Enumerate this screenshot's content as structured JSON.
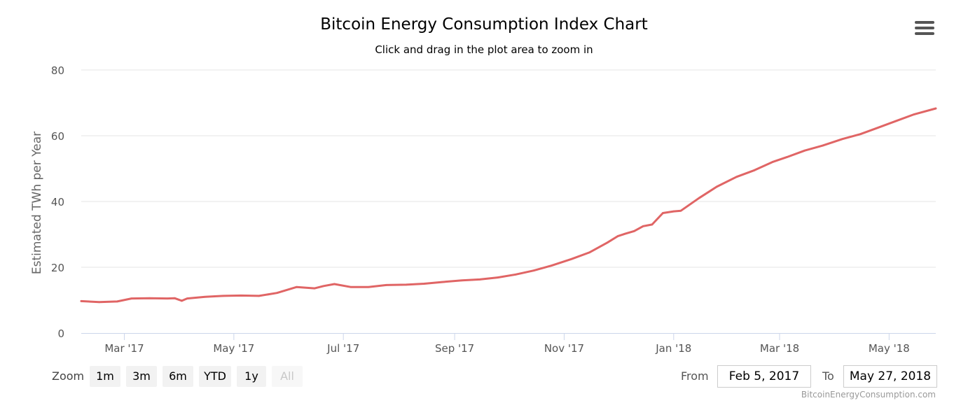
{
  "header": {
    "menu_icon": "hamburger-menu-icon"
  },
  "chart_data": {
    "type": "line",
    "title": "Bitcoin Energy Consumption Index Chart",
    "subtitle": "Click and drag in the plot area to zoom in",
    "ylabel": "Estimated TWh per Year",
    "xlabel": "",
    "ylim": [
      0,
      80
    ],
    "y_ticks": [
      0,
      20,
      40,
      60,
      80
    ],
    "xlim": [
      "2017-02-05",
      "2018-05-27"
    ],
    "x_ticks": [
      {
        "date": "2017-03-01",
        "label": "Mar '17"
      },
      {
        "date": "2017-05-01",
        "label": "May '17"
      },
      {
        "date": "2017-07-01",
        "label": "Jul '17"
      },
      {
        "date": "2017-09-01",
        "label": "Sep '17"
      },
      {
        "date": "2017-11-01",
        "label": "Nov '17"
      },
      {
        "date": "2018-01-01",
        "label": "Jan '18"
      },
      {
        "date": "2018-03-01",
        "label": "Mar '18"
      },
      {
        "date": "2018-05-01",
        "label": "May '18"
      }
    ],
    "grid": true,
    "line_color": "#e06565",
    "series": [
      {
        "x": [
          "2017-02-05",
          "2017-02-15",
          "2017-02-25",
          "2017-03-05",
          "2017-03-15",
          "2017-03-25",
          "2017-03-29",
          "2017-04-02",
          "2017-04-05",
          "2017-04-15",
          "2017-04-25",
          "2017-05-05",
          "2017-05-15",
          "2017-05-25",
          "2017-06-05",
          "2017-06-15",
          "2017-06-20",
          "2017-06-26",
          "2017-07-05",
          "2017-07-15",
          "2017-07-25",
          "2017-08-05",
          "2017-08-15",
          "2017-08-25",
          "2017-09-05",
          "2017-09-15",
          "2017-09-25",
          "2017-10-05",
          "2017-10-15",
          "2017-10-25",
          "2017-11-05",
          "2017-11-15",
          "2017-11-25",
          "2017-12-01",
          "2017-12-05",
          "2017-12-10",
          "2017-12-15",
          "2017-12-20",
          "2017-12-26",
          "2018-01-01",
          "2018-01-05",
          "2018-01-15",
          "2018-01-25",
          "2018-02-05",
          "2018-02-15",
          "2018-02-25",
          "2018-03-05",
          "2018-03-15",
          "2018-03-25",
          "2018-04-05",
          "2018-04-15",
          "2018-04-25",
          "2018-05-05",
          "2018-05-15",
          "2018-05-27"
        ],
        "y": [
          9.7,
          9.4,
          9.6,
          10.5,
          10.6,
          10.5,
          10.6,
          9.8,
          10.5,
          11.0,
          11.3,
          11.4,
          11.3,
          12.2,
          14.0,
          13.6,
          14.3,
          14.9,
          14.0,
          14.0,
          14.6,
          14.7,
          15.0,
          15.5,
          16.0,
          16.3,
          16.9,
          17.8,
          19.0,
          20.5,
          22.5,
          24.5,
          27.5,
          29.5,
          30.2,
          31.0,
          32.5,
          33.0,
          36.5,
          37.0,
          37.2,
          41.0,
          44.5,
          47.5,
          49.5,
          52.0,
          53.5,
          55.5,
          57.0,
          59.0,
          60.5,
          62.5,
          64.5,
          66.5,
          68.3
        ]
      }
    ]
  },
  "zoom": {
    "label": "Zoom",
    "buttons": [
      "1m",
      "3m",
      "6m",
      "YTD",
      "1y",
      "All"
    ]
  },
  "range": {
    "from_label": "From",
    "from_value": "Feb 5, 2017",
    "to_label": "To",
    "to_value": "May 27, 2018"
  },
  "credit": "BitcoinEnergyConsumption.com"
}
